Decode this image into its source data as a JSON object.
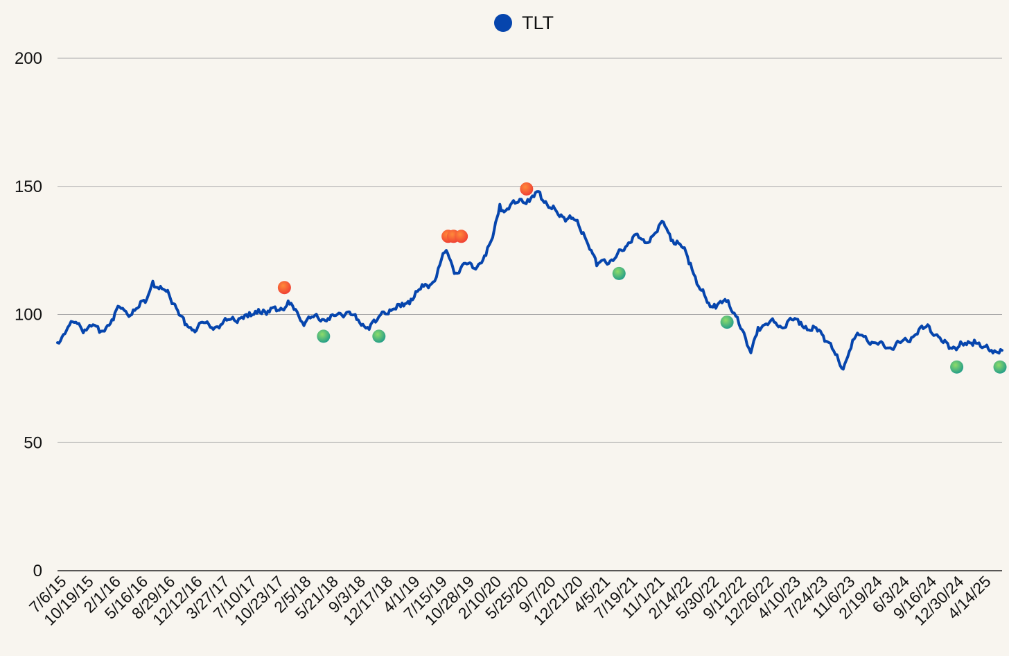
{
  "chart_data": {
    "type": "line",
    "title": "",
    "xlabel": "",
    "ylabel": "",
    "ylim": [
      0,
      200
    ],
    "yticks": [
      0,
      50,
      100,
      150,
      200
    ],
    "legend": {
      "position": "top-center",
      "entries": [
        {
          "name": "TLT",
          "color": "#0645ad"
        }
      ]
    },
    "x_tick_labels": [
      "7/6/15",
      "10/19/15",
      "2/1/16",
      "5/16/16",
      "8/29/16",
      "12/12/16",
      "3/27/17",
      "7/10/17",
      "10/23/17",
      "2/5/18",
      "5/21/18",
      "9/3/18",
      "12/17/18",
      "4/1/19",
      "7/15/19",
      "10/28/19",
      "2/10/20",
      "5/25/20",
      "9/7/20",
      "12/21/20",
      "4/5/21",
      "7/19/21",
      "11/1/21",
      "2/14/22",
      "5/30/22",
      "9/12/22",
      "12/26/22",
      "4/10/23",
      "7/24/23",
      "11/6/23",
      "2/19/24",
      "6/3/24",
      "9/16/24",
      "12/30/24",
      "4/14/25"
    ],
    "series": [
      {
        "name": "TLT",
        "color": "#0645ad",
        "points": [
          [
            "7/6/15",
            89
          ],
          [
            "8/15/15",
            95
          ],
          [
            "9/15/15",
            97
          ],
          [
            "10/19/15",
            94
          ],
          [
            "11/20/15",
            96
          ],
          [
            "12/15/15",
            93
          ],
          [
            "1/10/16",
            95
          ],
          [
            "2/1/16",
            98
          ],
          [
            "3/1/16",
            103
          ],
          [
            "4/1/16",
            100
          ],
          [
            "5/16/16",
            103
          ],
          [
            "6/15/16",
            106
          ],
          [
            "7/8/16",
            113
          ],
          [
            "8/1/16",
            110
          ],
          [
            "8/29/16",
            109
          ],
          [
            "10/1/16",
            104
          ],
          [
            "11/9/16",
            96
          ],
          [
            "12/12/16",
            94
          ],
          [
            "1/15/17",
            97
          ],
          [
            "2/15/17",
            95
          ],
          [
            "3/27/17",
            96
          ],
          [
            "5/1/17",
            98
          ],
          [
            "7/10/17",
            99
          ],
          [
            "8/20/17",
            102
          ],
          [
            "9/20/17",
            100
          ],
          [
            "10/23/17",
            103
          ],
          [
            "11/20/17",
            102
          ],
          [
            "12/18/17",
            104
          ],
          [
            "1/10/18",
            102
          ],
          [
            "2/5/18",
            97
          ],
          [
            "3/20/18",
            99
          ],
          [
            "5/21/18",
            98
          ],
          [
            "6/20/18",
            100
          ],
          [
            "8/1/18",
            101
          ],
          [
            "9/3/18",
            98
          ],
          [
            "10/15/18",
            95
          ],
          [
            "11/15/18",
            97
          ],
          [
            "12/17/18",
            101
          ],
          [
            "1/20/19",
            102
          ],
          [
            "2/20/19",
            103
          ],
          [
            "4/1/19",
            106
          ],
          [
            "5/20/19",
            111
          ],
          [
            "7/1/19",
            113
          ],
          [
            "7/15/19",
            118
          ],
          [
            "8/15/19",
            125
          ],
          [
            "9/1/19",
            121
          ],
          [
            "9/15/19",
            116
          ],
          [
            "10/28/19",
            120
          ],
          [
            "12/1/19",
            118
          ],
          [
            "1/15/20",
            123
          ],
          [
            "2/10/20",
            130
          ],
          [
            "3/9/20",
            143
          ],
          [
            "3/25/20",
            140
          ],
          [
            "5/25/20",
            145
          ],
          [
            "7/1/20",
            144
          ],
          [
            "8/5/20",
            148
          ],
          [
            "9/7/20",
            143
          ],
          [
            "10/20/20",
            139
          ],
          [
            "12/21/20",
            137
          ],
          [
            "1/25/21",
            132
          ],
          [
            "2/25/21",
            125
          ],
          [
            "3/18/21",
            119
          ],
          [
            "4/5/21",
            121
          ],
          [
            "5/20/21",
            121
          ],
          [
            "7/19/21",
            128
          ],
          [
            "8/10/21",
            131
          ],
          [
            "9/20/21",
            128
          ],
          [
            "11/1/21",
            132
          ],
          [
            "12/1/21",
            136
          ],
          [
            "1/5/22",
            129
          ],
          [
            "2/14/22",
            126
          ],
          [
            "3/15/22",
            120
          ],
          [
            "4/15/22",
            111
          ],
          [
            "5/30/22",
            103
          ],
          [
            "6/15/22",
            104
          ],
          [
            "8/1/22",
            105
          ],
          [
            "9/12/22",
            99
          ],
          [
            "10/20/22",
            88
          ],
          [
            "11/3/22",
            85
          ],
          [
            "12/1/22",
            95
          ],
          [
            "12/26/22",
            96
          ],
          [
            "2/1/23",
            97
          ],
          [
            "3/1/23",
            95
          ],
          [
            "4/10/23",
            98
          ],
          [
            "5/15/23",
            97
          ],
          [
            "6/15/23",
            94
          ],
          [
            "7/24/23",
            94
          ],
          [
            "9/1/23",
            89
          ],
          [
            "10/20/23",
            79
          ],
          [
            "11/6/23",
            82
          ],
          [
            "12/1/23",
            90
          ],
          [
            "1/1/24",
            92
          ],
          [
            "2/19/24",
            89
          ],
          [
            "4/25/24",
            87
          ],
          [
            "6/3/24",
            89
          ],
          [
            "7/15/24",
            91
          ],
          [
            "9/16/24",
            96
          ],
          [
            "10/15/24",
            92
          ],
          [
            "11/15/24",
            89
          ],
          [
            "12/30/24",
            87
          ],
          [
            "2/1/25",
            88
          ],
          [
            "3/15/25",
            90
          ],
          [
            "4/14/25",
            87
          ],
          [
            "5/20/25",
            86
          ],
          [
            "6/30/25",
            86
          ]
        ]
      }
    ],
    "markers": [
      {
        "x": "11/28/17",
        "y": 110.5,
        "type": "red"
      },
      {
        "x": "4/28/18",
        "y": 91.5,
        "type": "green"
      },
      {
        "x": "11/28/18",
        "y": 91.5,
        "type": "green"
      },
      {
        "x": "8/22/19",
        "y": 130.5,
        "type": "red"
      },
      {
        "x": "9/12/19",
        "y": 130.5,
        "type": "red"
      },
      {
        "x": "10/12/19",
        "y": 130.5,
        "type": "red"
      },
      {
        "x": "6/20/20",
        "y": 149,
        "type": "red"
      },
      {
        "x": "6/12/21",
        "y": 116,
        "type": "green"
      },
      {
        "x": "8/3/22",
        "y": 97,
        "type": "green"
      },
      {
        "x": "1/6/25",
        "y": 79.5,
        "type": "green"
      },
      {
        "x": "6/22/25",
        "y": 79.5,
        "type": "green"
      }
    ]
  }
}
